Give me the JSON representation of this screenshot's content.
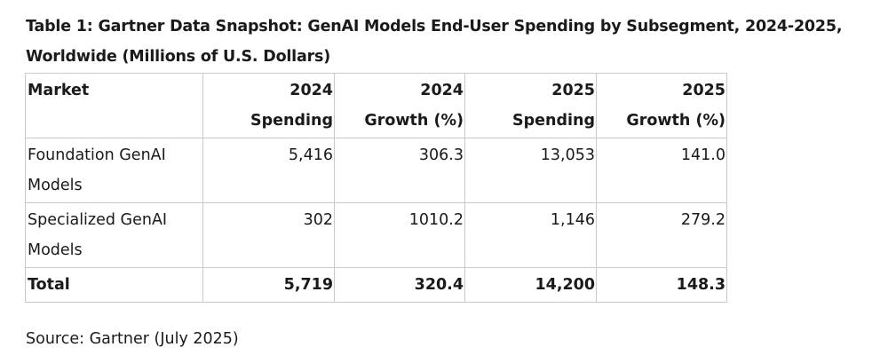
{
  "title": "Table 1: Gartner Data Snapshot: GenAI Models End-User Spending by Subsegment, 2024-2025, Worldwide (Millions of U.S. Dollars)",
  "table": {
    "headers": [
      {
        "line1": "Market",
        "line2": ""
      },
      {
        "line1": "2024",
        "line2": "Spending"
      },
      {
        "line1": "2024",
        "line2": "Growth (%)"
      },
      {
        "line1": "2025",
        "line2": "Spending"
      },
      {
        "line1": "2025",
        "line2": "Growth (%)"
      }
    ],
    "rows": [
      {
        "market": "Foundation GenAI Models",
        "spend_2024": "5,416",
        "growth_2024": "306.3",
        "spend_2025": "13,053",
        "growth_2025": "141.0"
      },
      {
        "market": "Specialized GenAI Models",
        "spend_2024": "302",
        "growth_2024": "1010.2",
        "spend_2025": "1,146",
        "growth_2025": "279.2"
      }
    ],
    "total": {
      "market": "Total",
      "spend_2024": "5,719",
      "growth_2024": "320.4",
      "spend_2025": "14,200",
      "growth_2025": "148.3"
    }
  },
  "source": "Source: Gartner (July 2025)"
}
